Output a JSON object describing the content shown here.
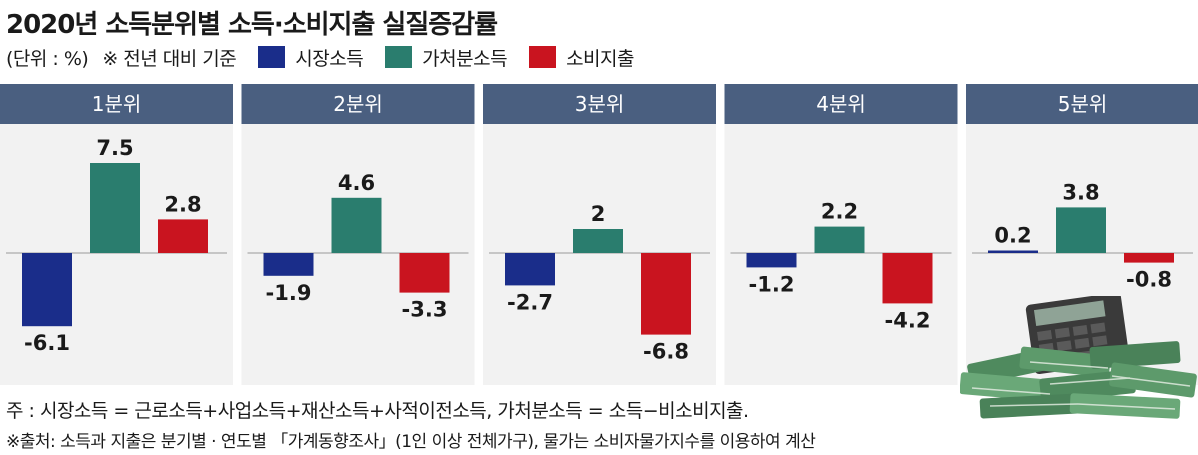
{
  "title": "2020년 소득분위별 소득·소비지출 실질증감률",
  "unit_label": "(단위 : %)",
  "basis_label": "※ 전년 대비 기준",
  "colors": {
    "market_income": "#1a2d8a",
    "disposable_income": "#2a7d6e",
    "consumption": "#c9141f",
    "panel_header": "#4a5f80",
    "panel_bg": "#f2f2f2",
    "baseline": "#9a9a9a"
  },
  "chart_data": {
    "type": "bar",
    "categories": [
      "1분위",
      "2분위",
      "3분위",
      "4분위",
      "5분위"
    ],
    "series": [
      {
        "name": "시장소득",
        "values": [
          -6.1,
          -1.9,
          -2.7,
          -1.2,
          0.2
        ]
      },
      {
        "name": "가처분소득",
        "values": [
          7.5,
          4.6,
          2,
          2.2,
          3.8
        ]
      },
      {
        "name": "소비지출",
        "values": [
          2.8,
          -3.3,
          -6.8,
          -4.2,
          -0.8
        ]
      }
    ],
    "value_labels": [
      [
        "-6.1",
        "7.5",
        "2.8"
      ],
      [
        "-1.9",
        "4.6",
        "-3.3"
      ],
      [
        "-2.7",
        "2",
        "-6.8"
      ],
      [
        "-1.2",
        "2.2",
        "-4.2"
      ],
      [
        "0.2",
        "3.8",
        "-0.8"
      ]
    ],
    "legend": "top-left",
    "grid": false
  },
  "notes": {
    "formula": "주 : 시장소득 = 근로소득+사업소득+재산소득+사적이전소득, 가처분소득 = 소득−비소비지출.",
    "source": "※출처: 소득과 지출은 분기별 · 연도별 「가계동향조사」(1인 이상 전체가구), 물가는 소비자물가지수를 이용하여 계산"
  },
  "illustration": {
    "name": "calculator-and-money-illustration"
  }
}
